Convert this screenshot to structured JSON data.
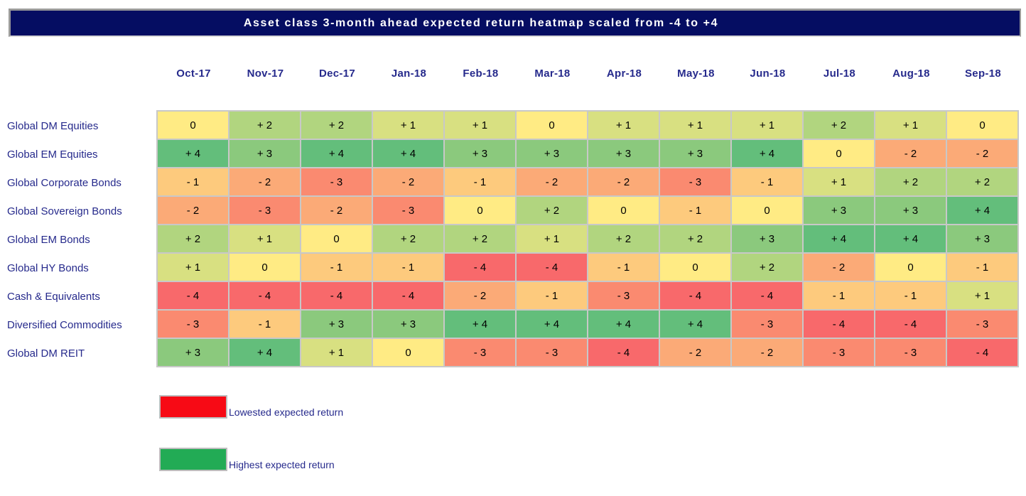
{
  "title": "Asset class 3-month ahead expected return heatmap scaled from -4 to +4",
  "colors": {
    "title_bar_bg": "#050D62",
    "title_text": "#FFFFFF",
    "header_text": "#262A8C",
    "row_label_text": "#262A8C",
    "grid_line": "#C8C8C8",
    "cell_text": "#000000",
    "legend_text": "#262A8C"
  },
  "chart_data": {
    "type": "heatmap",
    "title": "Asset class 3-month ahead expected return heatmap scaled from -4 to +4",
    "scale_min": -4,
    "scale_max": 4,
    "columns": [
      "Oct-17",
      "Nov-17",
      "Dec-17",
      "Jan-18",
      "Feb-18",
      "Mar-18",
      "Apr-18",
      "May-18",
      "Jun-18",
      "Jul-18",
      "Aug-18",
      "Sep-18"
    ],
    "rows": [
      "Global DM Equities",
      "Global EM Equities",
      "Global Corporate Bonds",
      "Global Sovereign Bonds",
      "Global EM Bonds",
      "Global HY Bonds",
      "Cash & Equivalents",
      "Diversified Commodities",
      "Global DM REIT"
    ],
    "values": [
      [
        0,
        2,
        2,
        1,
        1,
        0,
        1,
        1,
        1,
        2,
        1,
        0
      ],
      [
        4,
        3,
        4,
        4,
        3,
        3,
        3,
        3,
        4,
        0,
        -2,
        -2
      ],
      [
        -1,
        -2,
        -3,
        -2,
        -1,
        -2,
        -2,
        -3,
        -1,
        1,
        2,
        2
      ],
      [
        -2,
        -3,
        -2,
        -3,
        0,
        2,
        0,
        -1,
        0,
        3,
        3,
        4
      ],
      [
        2,
        1,
        0,
        2,
        2,
        1,
        2,
        2,
        3,
        4,
        4,
        3
      ],
      [
        1,
        0,
        -1,
        -1,
        -4,
        -4,
        -1,
        0,
        2,
        -2,
        0,
        -1
      ],
      [
        -4,
        -4,
        -4,
        -4,
        -2,
        -1,
        -3,
        -4,
        -4,
        -1,
        -1,
        1
      ],
      [
        -3,
        -1,
        3,
        3,
        4,
        4,
        4,
        4,
        -3,
        -4,
        -4,
        -3
      ],
      [
        3,
        4,
        1,
        0,
        -3,
        -3,
        -4,
        -2,
        -2,
        -3,
        -3,
        -4
      ]
    ],
    "color_scale": {
      "-4": "#F8696B",
      "-3": "#FA8A70",
      "-2": "#FBAA77",
      "-1": "#FDCA7D",
      "0": "#FFEB84",
      "1": "#D8E081",
      "2": "#B1D57F",
      "3": "#8BC97D",
      "4": "#63BE7B"
    },
    "legend": [
      {
        "label": "Lowested expected return",
        "color": "#F70A15"
      },
      {
        "label": "Highest expected return",
        "color": "#22AB55"
      }
    ],
    "layout": {
      "grid": "off",
      "legend_position": "bottom-left"
    }
  }
}
